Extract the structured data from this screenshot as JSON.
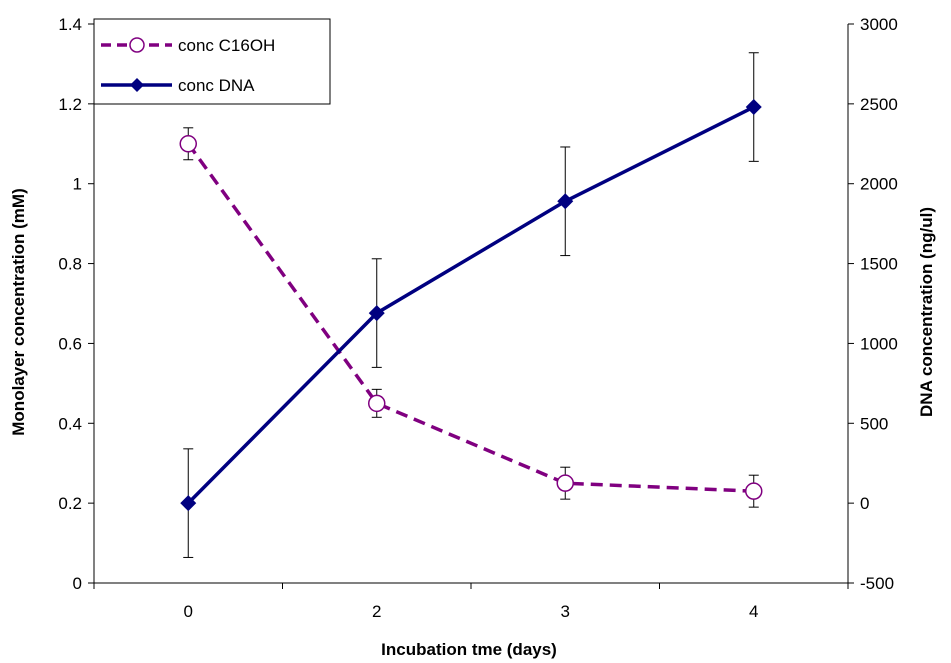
{
  "chart_data": {
    "type": "line",
    "title": "",
    "xlabel": "Incubation tme (days)",
    "ylabel_left": "Monolayer concentration (mM)",
    "ylabel_right": "DNA concentration (ng/ul)",
    "categories": [
      "0",
      "2",
      "3",
      "4"
    ],
    "ylim_left": [
      0,
      1.4
    ],
    "ylim_right": [
      -500,
      3000
    ],
    "yticks_left": [
      "0",
      "0.2",
      "0.4",
      "0.6",
      "0.8",
      "1",
      "1.2",
      "1.4"
    ],
    "yticks_right": [
      "-500",
      "0",
      "500",
      "1000",
      "1500",
      "2000",
      "2500",
      "3000"
    ],
    "grid": false,
    "legend_position": "top-left",
    "series": [
      {
        "name": "conc C16OH",
        "axis": "left",
        "color": "#800080",
        "line_style": "dashed",
        "marker": "open-circle",
        "values": [
          1.1,
          0.45,
          0.25,
          0.23
        ],
        "errors": [
          0.04,
          0.035,
          0.04,
          0.04
        ]
      },
      {
        "name": "conc DNA",
        "axis": "right",
        "color": "#000080",
        "line_style": "solid",
        "marker": "filled-diamond",
        "values": [
          0,
          1190,
          1890,
          2480
        ],
        "errors": [
          340,
          340,
          340,
          340
        ]
      }
    ]
  }
}
